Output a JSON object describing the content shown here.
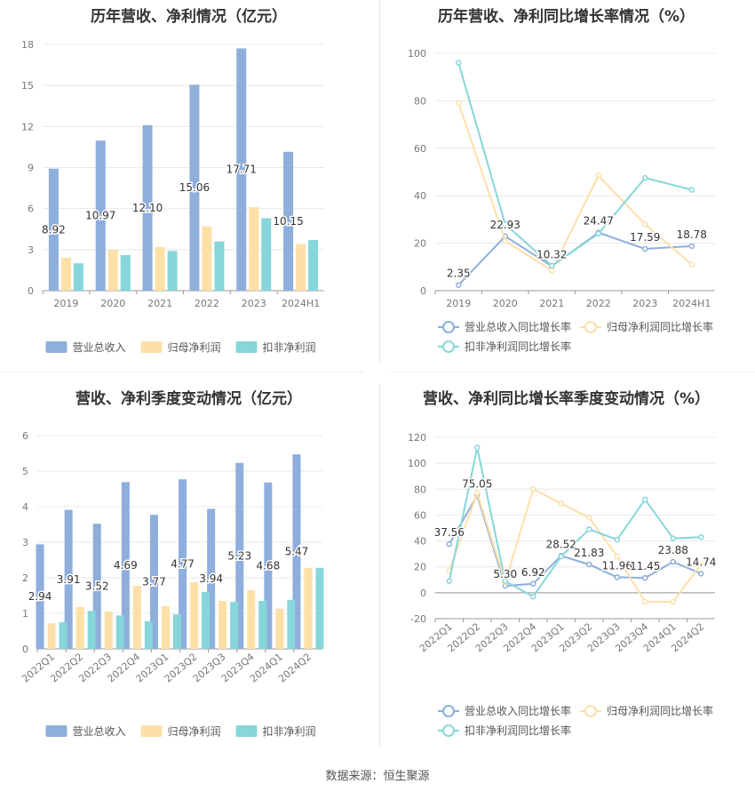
{
  "footer": "数据来源：恒生聚源",
  "colors": {
    "revenue": "#8eaedc",
    "parent_net": "#fde0a8",
    "deducted_net": "#86d6da",
    "grid": "#e8e8e8",
    "axis": "#666666"
  },
  "chart_data": [
    {
      "type": "bar",
      "title": "历年营收、净利情况（亿元）",
      "categories": [
        "2019",
        "2020",
        "2021",
        "2022",
        "2023",
        "2024H1"
      ],
      "ylim": [
        0,
        18
      ],
      "yticks": [
        0,
        3,
        6,
        9,
        12,
        15,
        18
      ],
      "series": [
        {
          "name": "营业总收入",
          "values": [
            8.92,
            10.97,
            12.1,
            15.06,
            17.71,
            10.15
          ],
          "labels": [
            "8.92",
            "10.97",
            "12.10",
            "15.06",
            "17.71",
            "10.15"
          ]
        },
        {
          "name": "归母净利润",
          "values": [
            2.4,
            3.0,
            3.2,
            4.7,
            6.1,
            3.4
          ]
        },
        {
          "name": "扣非净利润",
          "values": [
            2.0,
            2.6,
            2.9,
            3.6,
            5.3,
            3.7
          ]
        }
      ],
      "legend": "bottom",
      "grid": true
    },
    {
      "type": "line",
      "title": "历年营收、净利同比增长率情况（%）",
      "categories": [
        "2019",
        "2020",
        "2021",
        "2022",
        "2023",
        "2024H1"
      ],
      "ylim": [
        0,
        100
      ],
      "yticks": [
        0,
        20,
        40,
        60,
        80,
        100
      ],
      "series": [
        {
          "name": "营业总收入同比增长率",
          "values": [
            2.35,
            22.93,
            10.32,
            24.47,
            17.59,
            18.78
          ],
          "labels": [
            "2.35",
            "22.93",
            "10.32",
            "24.47",
            "17.59",
            "18.78"
          ]
        },
        {
          "name": "归母净利润同比增长率",
          "values": [
            79,
            21,
            8.5,
            48.5,
            28,
            11
          ]
        },
        {
          "name": "扣非净利润同比增长率",
          "values": [
            96,
            28,
            10.5,
            24,
            47.5,
            42.5
          ]
        }
      ],
      "legend": "bottom",
      "grid": true
    },
    {
      "type": "bar",
      "title": "营收、净利季度变动情况（亿元）",
      "categories": [
        "2022Q1",
        "2022Q2",
        "2022Q3",
        "2022Q4",
        "2023Q1",
        "2023Q2",
        "2023Q3",
        "2023Q4",
        "2024Q1",
        "2024Q2"
      ],
      "ylim": [
        0,
        6
      ],
      "yticks": [
        0,
        1,
        2,
        3,
        4,
        5,
        6
      ],
      "series": [
        {
          "name": "营业总收入",
          "values": [
            2.94,
            3.91,
            3.52,
            4.69,
            3.77,
            4.77,
            3.94,
            5.23,
            4.68,
            5.47
          ],
          "labels": [
            "2.94",
            "3.91",
            "3.52",
            "4.69",
            "3.77",
            "4.77",
            "3.94",
            "5.23",
            "4.68",
            "5.47"
          ]
        },
        {
          "name": "归母净利润",
          "values": [
            0.72,
            1.18,
            1.05,
            1.77,
            1.2,
            1.87,
            1.35,
            1.65,
            1.13,
            2.28
          ]
        },
        {
          "name": "扣非净利润",
          "values": [
            0.75,
            1.07,
            0.94,
            0.78,
            0.97,
            1.6,
            1.32,
            1.35,
            1.38,
            2.28
          ]
        }
      ],
      "legend": "bottom",
      "grid": true
    },
    {
      "type": "line",
      "title": "营收、净利同比增长率季度变动情况（%）",
      "categories": [
        "2022Q1",
        "2022Q2",
        "2022Q3",
        "2022Q4",
        "2023Q1",
        "2023Q2",
        "2023Q3",
        "2023Q4",
        "2024Q1",
        "2024Q2"
      ],
      "ylim": [
        -20,
        120
      ],
      "yticks": [
        -20,
        0,
        20,
        40,
        60,
        80,
        100,
        120
      ],
      "series": [
        {
          "name": "营业总收入同比增长率",
          "values": [
            37.56,
            75.05,
            5.3,
            6.92,
            28.52,
            21.83,
            11.96,
            11.45,
            23.88,
            14.74
          ],
          "labels": [
            "37.56",
            "75.05",
            "5.30",
            "6.92",
            "28.52",
            "21.83",
            "11.96",
            "11.45",
            "23.88",
            "14.74"
          ]
        },
        {
          "name": "归母净利润同比增长率",
          "values": [
            17,
            77,
            8,
            80,
            69,
            58,
            28,
            -7,
            -7,
            22
          ]
        },
        {
          "name": "扣非净利润同比增长率",
          "values": [
            9,
            112,
            9,
            -3,
            28,
            49,
            41,
            72,
            42,
            43
          ]
        }
      ],
      "legend": "bottom",
      "grid": true
    }
  ]
}
